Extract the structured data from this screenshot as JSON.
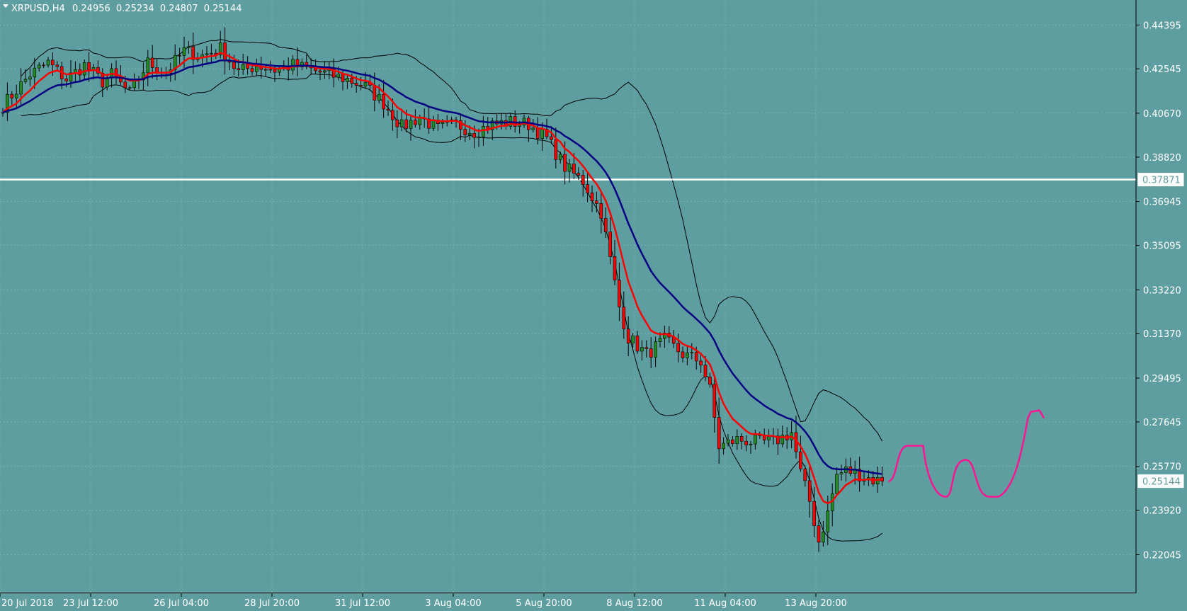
{
  "header": {
    "symbol_label": "XRPUSD,H4",
    "ohlc": [
      "0.24956",
      "0.25234",
      "0.24807",
      "0.25144"
    ]
  },
  "chart_data": {
    "type": "candlestick",
    "symbol": "XRPUSD",
    "timeframe": "H4",
    "ylim": [
      0.211,
      0.45
    ],
    "y_ticks": [
      "0.44395",
      "0.42545",
      "0.40670",
      "0.38820",
      "0.36945",
      "0.35095",
      "0.33220",
      "0.31370",
      "0.29495",
      "0.27645",
      "0.25770",
      "0.23920",
      "0.22045"
    ],
    "x_ticks": [
      "20 Jul 2018",
      "23 Jul 12:00",
      "26 Jul 04:00",
      "28 Jul 20:00",
      "31 Jul 12:00",
      "3 Aug 04:00",
      "5 Aug 20:00",
      "8 Aug 12:00",
      "11 Aug 04:00",
      "13 Aug 20:00"
    ],
    "bar_count": 195,
    "last_price": "0.25144",
    "horizontal_line": "0.37871",
    "candle_anchors": [
      [
        0,
        0.41
      ],
      [
        6,
        0.423
      ],
      [
        10,
        0.428
      ],
      [
        14,
        0.421
      ],
      [
        18,
        0.427
      ],
      [
        22,
        0.42
      ],
      [
        24,
        0.423
      ],
      [
        28,
        0.415
      ],
      [
        32,
        0.428
      ],
      [
        36,
        0.424
      ],
      [
        40,
        0.433
      ],
      [
        44,
        0.431
      ],
      [
        48,
        0.434
      ],
      [
        52,
        0.424
      ],
      [
        56,
        0.427
      ],
      [
        60,
        0.425
      ],
      [
        64,
        0.427
      ],
      [
        68,
        0.425
      ],
      [
        72,
        0.423
      ],
      [
        76,
        0.421
      ],
      [
        80,
        0.418
      ],
      [
        84,
        0.411
      ],
      [
        88,
        0.401
      ],
      [
        92,
        0.405
      ],
      [
        96,
        0.4
      ],
      [
        100,
        0.402
      ],
      [
        104,
        0.399
      ],
      [
        108,
        0.402
      ],
      [
        112,
        0.403
      ],
      [
        116,
        0.402
      ],
      [
        120,
        0.396
      ],
      [
        124,
        0.384
      ],
      [
        128,
        0.378
      ],
      [
        132,
        0.365
      ],
      [
        136,
        0.325
      ],
      [
        138,
        0.312
      ],
      [
        142,
        0.305
      ],
      [
        146,
        0.311
      ],
      [
        150,
        0.305
      ],
      [
        154,
        0.302
      ],
      [
        156,
        0.29
      ],
      [
        158,
        0.266
      ],
      [
        162,
        0.269
      ],
      [
        166,
        0.268
      ],
      [
        170,
        0.268
      ],
      [
        174,
        0.272
      ],
      [
        176,
        0.255
      ],
      [
        178,
        0.243
      ],
      [
        180,
        0.226
      ],
      [
        182,
        0.238
      ],
      [
        184,
        0.254
      ],
      [
        186,
        0.256
      ],
      [
        188,
        0.255
      ],
      [
        192,
        0.252
      ],
      [
        194,
        0.25144
      ]
    ],
    "indicators": [
      {
        "kind": "ema",
        "period": 8,
        "color": "#ff0000",
        "width": 2.5
      },
      {
        "kind": "ema",
        "period": 21,
        "color": "#000080",
        "width": 2.5
      },
      {
        "kind": "bollinger",
        "period": 20,
        "deviation": 2,
        "color": "#000000",
        "width": 1
      }
    ],
    "candle_colors": {
      "bull": "#228b22",
      "bear": "#ff0000",
      "wick": "#000000"
    },
    "drawing": {
      "kind": "freehand-projection",
      "color": "#ff1493"
    }
  }
}
